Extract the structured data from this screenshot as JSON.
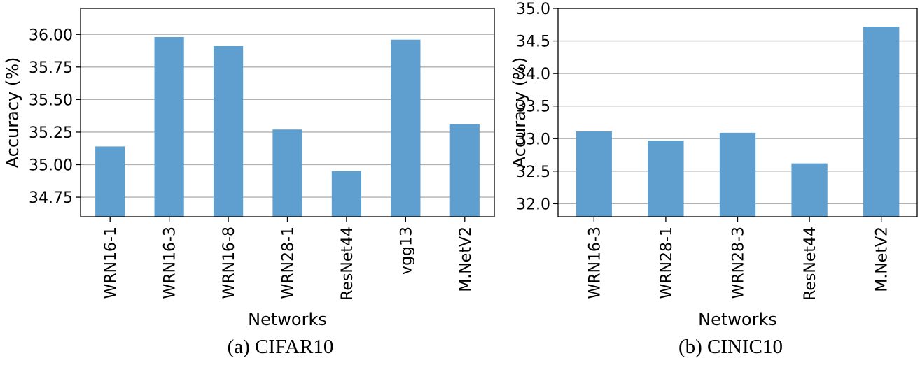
{
  "chart_data": [
    {
      "type": "bar",
      "caption": "(a) CIFAR10",
      "xlabel": "Networks",
      "ylabel": "Accuracy (%)",
      "categories": [
        "WRN16-1",
        "WRN16-3",
        "WRN16-8",
        "WRN28-1",
        "ResNet44",
        "vgg13",
        "M.NetV2"
      ],
      "values": [
        35.14,
        35.98,
        35.91,
        35.27,
        34.95,
        35.96,
        35.31
      ],
      "ylim": [
        34.6,
        36.2
      ],
      "yticks": [
        "34.75",
        "35.00",
        "35.25",
        "35.50",
        "35.75",
        "36.00"
      ],
      "grid": "y",
      "color": "#5f9fcf"
    },
    {
      "type": "bar",
      "caption": "(b) CINIC10",
      "xlabel": "Networks",
      "ylabel": "Accuracy (%)",
      "categories": [
        "WRN16-3",
        "WRN28-1",
        "WRN28-3",
        "ResNet44",
        "M.NetV2"
      ],
      "values": [
        33.11,
        32.97,
        33.09,
        32.62,
        34.72
      ],
      "ylim": [
        31.8,
        35.0
      ],
      "yticks": [
        "32.0",
        "32.5",
        "33.0",
        "33.5",
        "34.0",
        "34.5",
        "35.0"
      ],
      "grid": "y",
      "color": "#5f9fcf"
    }
  ]
}
